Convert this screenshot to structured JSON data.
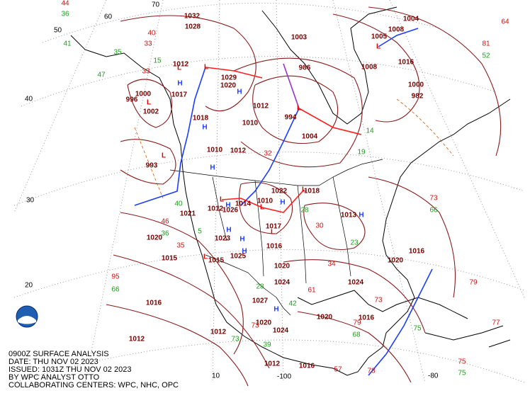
{
  "caption": [
    "0900Z SURFACE ANALYSIS",
    "DATE: THU NOV 02 2023",
    "ISSUED: 1031Z THU NOV 02 2023",
    "BY WPC ANALYST OTTO",
    "COLLABORATING CENTERS: WPC, NHC, OPC"
  ],
  "grid_labels": [
    "50",
    "40",
    "30",
    "20",
    "60",
    "70",
    "-100",
    "-80",
    "10"
  ],
  "highs": [
    "H",
    "H",
    "H",
    "H",
    "H",
    "H",
    "H",
    "H",
    "H",
    "H",
    "H"
  ],
  "lows": [
    "L",
    "L",
    "L",
    "L",
    "L",
    "L",
    "L",
    "L",
    "L",
    "L",
    "L"
  ],
  "isobar_labels": [
    "1012",
    "1017",
    "1018",
    "1010",
    "1012",
    "1002",
    "993",
    "1029",
    "1020",
    "1012",
    "1010",
    "994",
    "1004",
    "1003",
    "986",
    "1005",
    "1008",
    "1004",
    "1016",
    "1032",
    "1028",
    "1000",
    "996",
    "1022",
    "1018",
    "1010",
    "1013",
    "1014",
    "1021",
    "1012",
    "1026",
    "1023",
    "1025",
    "1015",
    "1017",
    "1016",
    "1015",
    "1027",
    "1016",
    "1012",
    "1024",
    "1016",
    "1020",
    "1012",
    "1016",
    "1020",
    "1016",
    "1020",
    "1008",
    "1000",
    "982",
    "1024",
    "1024",
    "1012",
    "1020",
    "1020"
  ],
  "temperatures": [
    "44",
    "40",
    "33",
    "33",
    "32",
    "46",
    "35",
    "95",
    "73",
    "79",
    "77",
    "75",
    "81",
    "64",
    "57",
    "61",
    "34",
    "30",
    "79",
    "73",
    "73",
    "78"
  ],
  "dewpoints": [
    "36",
    "41",
    "47",
    "35",
    "15",
    "66",
    "52",
    "66",
    "75",
    "75",
    "28",
    "36",
    "5",
    "40",
    "39",
    "73",
    "28",
    "42",
    "68",
    "14",
    "19",
    "23"
  ]
}
